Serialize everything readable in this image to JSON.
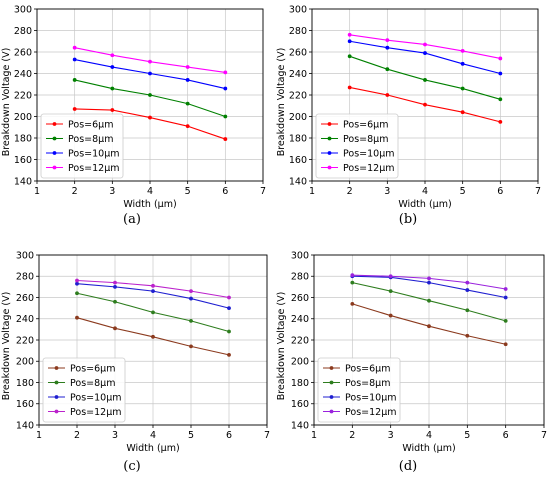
{
  "chart_data": [
    {
      "type": "line",
      "caption": "(a)",
      "xlabel": "Width (μm)",
      "ylabel": "Breakdown Voltage (V)",
      "xlim": [
        1,
        7
      ],
      "ylim": [
        140,
        300
      ],
      "xticks": [
        "1",
        "2",
        "3",
        "4",
        "5",
        "6",
        "7"
      ],
      "yticks": [
        "140",
        "160",
        "180",
        "200",
        "220",
        "240",
        "260",
        "280",
        "300"
      ],
      "grid": true,
      "legend_placement": "lower-left",
      "x": [
        2,
        3,
        4,
        5,
        6
      ],
      "series": [
        {
          "name": "Pos=6μm",
          "color": "#ff0000",
          "values": [
            207,
            206,
            199,
            191,
            179
          ]
        },
        {
          "name": "Pos=8μm",
          "color": "#008000",
          "values": [
            234,
            226,
            220,
            212,
            200
          ]
        },
        {
          "name": "Pos=10μm",
          "color": "#0000ff",
          "values": [
            253,
            246,
            240,
            234,
            226
          ]
        },
        {
          "name": "Pos=12μm",
          "color": "#ff00ff",
          "values": [
            264,
            257,
            251,
            246,
            241
          ]
        }
      ]
    },
    {
      "type": "line",
      "caption": "(b)",
      "xlabel": "Width (μm)",
      "ylabel": "Breakdown Voltage (V)",
      "xlim": [
        1,
        7
      ],
      "ylim": [
        140,
        300
      ],
      "xticks": [
        "1",
        "2",
        "3",
        "4",
        "5",
        "6",
        "7"
      ],
      "yticks": [
        "140",
        "160",
        "180",
        "200",
        "220",
        "240",
        "260",
        "280",
        "300"
      ],
      "grid": true,
      "legend_placement": "lower-left",
      "x": [
        2,
        3,
        4,
        5,
        6
      ],
      "series": [
        {
          "name": "Pos=6μm",
          "color": "#ff0000",
          "values": [
            227,
            220,
            211,
            204,
            195
          ]
        },
        {
          "name": "Pos=8μm",
          "color": "#008000",
          "values": [
            256,
            244,
            234,
            226,
            216
          ]
        },
        {
          "name": "Pos=10μm",
          "color": "#0000ff",
          "values": [
            270,
            264,
            259,
            249,
            240
          ]
        },
        {
          "name": "Pos=12μm",
          "color": "#ff00ff",
          "values": [
            276,
            271,
            267,
            261,
            254
          ]
        }
      ]
    },
    {
      "type": "line",
      "caption": "(c)",
      "xlabel": "Width (μm)",
      "ylabel": "Breakdown Voltage (V)",
      "xlim": [
        1,
        7
      ],
      "ylim": [
        140,
        300
      ],
      "xticks": [
        "1",
        "2",
        "3",
        "4",
        "5",
        "6",
        "7"
      ],
      "yticks": [
        "140",
        "160",
        "180",
        "200",
        "220",
        "240",
        "260",
        "280",
        "300"
      ],
      "grid": true,
      "legend_placement": "lower-left",
      "x": [
        2,
        3,
        4,
        5,
        6
      ],
      "series": [
        {
          "name": "Pos=6μm",
          "color": "#8b3a1e",
          "values": [
            241,
            231,
            223,
            214,
            206
          ]
        },
        {
          "name": "Pos=8μm",
          "color": "#2e7d1e",
          "values": [
            264,
            256,
            246,
            238,
            228
          ]
        },
        {
          "name": "Pos=10μm",
          "color": "#1f1fd0",
          "values": [
            273,
            270,
            266,
            259,
            250
          ]
        },
        {
          "name": "Pos=12μm",
          "color": "#bb22cc",
          "values": [
            276,
            274,
            271,
            266,
            260
          ]
        }
      ]
    },
    {
      "type": "line",
      "caption": "(d)",
      "xlabel": "Width (μm)",
      "ylabel": "Breakdown Voltage (V)",
      "xlim": [
        1,
        7
      ],
      "ylim": [
        140,
        300
      ],
      "xticks": [
        "1",
        "2",
        "3",
        "4",
        "5",
        "6",
        "7"
      ],
      "yticks": [
        "140",
        "160",
        "180",
        "200",
        "220",
        "240",
        "260",
        "280",
        "300"
      ],
      "grid": true,
      "legend_placement": "lower-left",
      "x": [
        2,
        3,
        4,
        5,
        6
      ],
      "series": [
        {
          "name": "Pos=6μm",
          "color": "#8b3a1e",
          "values": [
            254,
            243,
            233,
            224,
            216
          ]
        },
        {
          "name": "Pos=8μm",
          "color": "#2e7d1e",
          "values": [
            274,
            266,
            257,
            248,
            238
          ]
        },
        {
          "name": "Pos=10μm",
          "color": "#1f1fd0",
          "values": [
            280,
            279,
            274,
            267,
            260
          ]
        },
        {
          "name": "Pos=12μm",
          "color": "#9a22dd",
          "values": [
            281,
            280,
            278,
            274,
            268
          ]
        }
      ]
    }
  ]
}
